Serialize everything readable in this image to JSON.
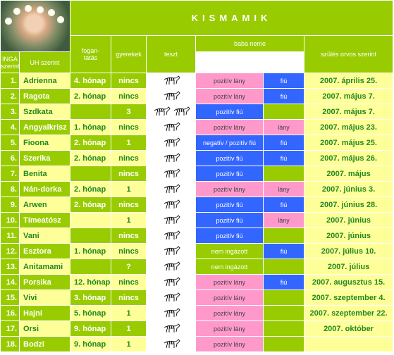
{
  "header": {
    "title": "KISMAMIK",
    "columns": {
      "fogantatas": "fogan-\ntatás",
      "gyerekek": "gyerekek",
      "teszt": "teszt",
      "baba_neme": "baba neme",
      "inga": "INGA szerint",
      "uh": "UH szerint",
      "szules": "szülés orvos szerint"
    }
  },
  "rows": [
    {
      "num": "1.",
      "name": "Adrienna",
      "month": "4. hónap",
      "kids": "nincs",
      "zebras": 1,
      "inga": "pozitív lány",
      "inga_color": "pink",
      "uh": "fiú",
      "uh_color": "blue",
      "date": "2007. április 25."
    },
    {
      "num": "2.",
      "name": "Ragota",
      "month": "2. hónap",
      "kids": "nincs",
      "zebras": 1,
      "inga": "pozitív lány",
      "inga_color": "pink",
      "uh": "fiú",
      "uh_color": "blue",
      "date": "2007. május 7."
    },
    {
      "num": "3.",
      "name": "Szdkata",
      "month": "",
      "kids": "3",
      "zebras": 2,
      "inga": "pozitív fiú",
      "inga_color": "blue",
      "uh": "",
      "uh_color": "green",
      "date": "2007. május 7."
    },
    {
      "num": "4.",
      "name": "Angyalkrisz",
      "month": "1. hónap",
      "kids": "nincs",
      "zebras": 1,
      "inga": "pozitív lány",
      "inga_color": "pink",
      "uh": "lány",
      "uh_color": "pink",
      "date": "2007. május 23."
    },
    {
      "num": "5.",
      "name": "Fioona",
      "month": "2. hónap",
      "kids": "1",
      "zebras": 1,
      "inga": "negatív / pozitív fiú",
      "inga_color": "blue",
      "uh": "fiú",
      "uh_color": "blue",
      "date": "2007. május 25."
    },
    {
      "num": "6.",
      "name": "Szerika",
      "month": "2. hónap",
      "kids": "nincs",
      "zebras": 1,
      "inga": "pozitív fiú",
      "inga_color": "blue",
      "uh": "fiú",
      "uh_color": "blue",
      "date": "2007. május 26."
    },
    {
      "num": "7.",
      "name": "Benita",
      "month": "",
      "kids": "nincs",
      "zebras": 1,
      "inga": "pozitív fiú",
      "inga_color": "blue",
      "uh": "",
      "uh_color": "green",
      "date": "2007. május"
    },
    {
      "num": "8.",
      "name": "Nán-dorka",
      "month": "2. hónap",
      "kids": "1",
      "zebras": 1,
      "inga": "pozitív lány",
      "inga_color": "pink",
      "uh": "lány",
      "uh_color": "pink",
      "date": "2007. június 3."
    },
    {
      "num": "9.",
      "name": "Arwen",
      "month": "2. hónap",
      "kids": "nincs",
      "zebras": 1,
      "inga": "pozitív fiú",
      "inga_color": "blue",
      "uh": "fiú",
      "uh_color": "blue",
      "date": "2007. június 28."
    },
    {
      "num": "10.",
      "name": "Tímeatósz",
      "month": "",
      "kids": "1",
      "zebras": 1,
      "inga": "pozitív fiú",
      "inga_color": "blue",
      "uh": "lány",
      "uh_color": "pink",
      "date": "2007. június"
    },
    {
      "num": "11.",
      "name": "Vani",
      "month": "",
      "kids": "nincs",
      "zebras": 1,
      "inga": "pozitív fiú",
      "inga_color": "blue",
      "uh": "",
      "uh_color": "green",
      "date": "2007. június"
    },
    {
      "num": "12.",
      "name": "Esztora",
      "month": "1. hónap",
      "kids": "nincs",
      "zebras": 1,
      "inga": "nem ingázott",
      "inga_color": "green",
      "uh": "fiú",
      "uh_color": "blue",
      "date": "2007. július 10."
    },
    {
      "num": "13.",
      "name": "Anitamami",
      "month": "",
      "kids": "?",
      "zebras": 1,
      "inga": "nem ingázott",
      "inga_color": "green",
      "uh": "",
      "uh_color": "green",
      "date": "2007. július"
    },
    {
      "num": "14.",
      "name": "Porsika",
      "month": "12. hónap",
      "kids": "nincs",
      "zebras": 1,
      "inga": "pozitív lány",
      "inga_color": "pink",
      "uh": "fiú",
      "uh_color": "blue",
      "date": "2007. augusztus 15."
    },
    {
      "num": "15.",
      "name": "Vivi",
      "month": "3. hónap",
      "kids": "nincs",
      "zebras": 1,
      "inga": "pozitív lány",
      "inga_color": "pink",
      "uh": "",
      "uh_color": "green",
      "date": "2007. szeptember 4."
    },
    {
      "num": "16.",
      "name": "Hajni",
      "month": "5. hónap",
      "kids": "1",
      "zebras": 1,
      "inga": "pozitív lány",
      "inga_color": "pink",
      "uh": "",
      "uh_color": "green",
      "date": "2007. szeptember 22."
    },
    {
      "num": "17.",
      "name": "Orsi",
      "month": "9. hónap",
      "kids": "1",
      "zebras": 1,
      "inga": "pozitív lány",
      "inga_color": "pink",
      "uh": "",
      "uh_color": "green",
      "date": "2007. október"
    },
    {
      "num": "18.",
      "name": "Bodzi",
      "month": "9. hónap",
      "kids": "1",
      "zebras": 1,
      "inga": "pozitív lány",
      "inga_color": "pink",
      "uh": "",
      "uh_color": "green",
      "date": ""
    }
  ]
}
